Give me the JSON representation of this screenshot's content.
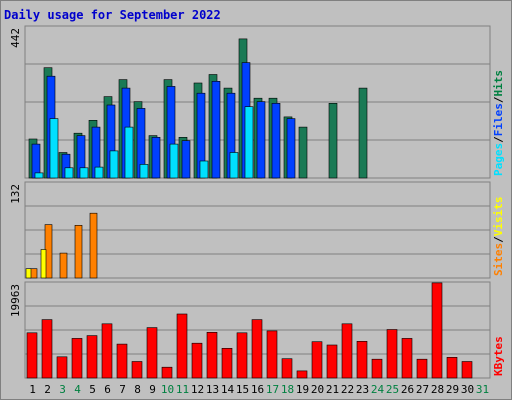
{
  "title": "Daily usage for September 2022",
  "colors": {
    "background": "#c0c0c0",
    "hits": "#1a7a55",
    "files": "#0040ff",
    "pages": "#00e0ff",
    "visits": "#ffff00",
    "sites": "#ff8000",
    "kbytes": "#ff0000",
    "title": "#0000cc",
    "weekend": "#008040",
    "grid": "#808080"
  },
  "chart_data": [
    {
      "type": "bar",
      "title": "Daily usage for September 2022",
      "categories": [
        "1",
        "2",
        "3",
        "4",
        "5",
        "6",
        "7",
        "8",
        "9",
        "10",
        "11",
        "12",
        "13",
        "14",
        "15",
        "16",
        "17",
        "18",
        "19",
        "20",
        "21",
        "22",
        "23",
        "24",
        "25",
        "26",
        "27",
        "28",
        "29",
        "30",
        "31"
      ],
      "weekend_days": [
        "3",
        "4",
        "10",
        "11",
        "17",
        "18",
        "24",
        "25",
        "31"
      ],
      "ylim": [
        0,
        442
      ],
      "ytick_label": "442",
      "grid": true,
      "right_labels": [
        "Pages",
        "/",
        "Files",
        "/",
        "Hits"
      ],
      "series": [
        {
          "name": "Hits",
          "values": [
            115,
            325,
            75,
            132,
            170,
            240,
            290,
            225,
            125,
            290,
            120,
            280,
            305,
            265,
            410,
            235,
            235,
            180,
            150,
            0,
            220,
            0,
            265,
            0,
            0,
            0,
            0,
            0,
            0,
            0,
            0
          ]
        },
        {
          "name": "Files",
          "values": [
            100,
            300,
            70,
            125,
            150,
            215,
            265,
            205,
            120,
            270,
            110,
            250,
            285,
            250,
            340,
            225,
            220,
            175,
            0,
            0,
            0,
            0,
            0,
            0,
            0,
            0,
            0,
            0,
            0,
            0,
            0
          ]
        },
        {
          "name": "Pages",
          "values": [
            15,
            175,
            30,
            30,
            32,
            80,
            150,
            40,
            0,
            100,
            0,
            50,
            0,
            75,
            210,
            0,
            0,
            0,
            0,
            0,
            0,
            0,
            0,
            0,
            0,
            0,
            0,
            0,
            0,
            0,
            0
          ]
        }
      ]
    },
    {
      "type": "bar",
      "categories": [
        "1",
        "2",
        "3",
        "4",
        "5",
        "6",
        "7",
        "8",
        "9",
        "10",
        "11",
        "12",
        "13",
        "14",
        "15",
        "16",
        "17",
        "18",
        "19",
        "20",
        "21",
        "22",
        "23",
        "24",
        "25",
        "26",
        "27",
        "28",
        "29",
        "30",
        "31"
      ],
      "ylim": [
        0,
        132
      ],
      "ytick_label": "132",
      "grid": true,
      "right_labels": [
        "Sites",
        "/",
        "Visits"
      ],
      "series": [
        {
          "name": "Sites",
          "values": [
            13,
            75,
            35,
            74,
            91,
            0,
            0,
            0,
            0,
            0,
            0,
            0,
            0,
            0,
            0,
            0,
            0,
            0,
            0,
            0,
            0,
            0,
            0,
            0,
            0,
            0,
            0,
            0,
            0,
            0,
            0
          ]
        },
        {
          "name": "Visits",
          "values": [
            13,
            40,
            0,
            0,
            0,
            0,
            0,
            0,
            0,
            0,
            0,
            0,
            0,
            0,
            0,
            0,
            0,
            0,
            0,
            0,
            0,
            0,
            0,
            0,
            0,
            0,
            0,
            0,
            0,
            0,
            0
          ]
        }
      ]
    },
    {
      "type": "bar",
      "categories": [
        "1",
        "2",
        "3",
        "4",
        "5",
        "6",
        "7",
        "8",
        "9",
        "10",
        "11",
        "12",
        "13",
        "14",
        "15",
        "16",
        "17",
        "18",
        "19",
        "20",
        "21",
        "22",
        "23",
        "24",
        "25",
        "26",
        "27",
        "28",
        "29",
        "30",
        "31"
      ],
      "ylim": [
        0,
        19963
      ],
      "ytick_label": "19963",
      "grid": true,
      "right_labels": [
        "KBytes"
      ],
      "series": [
        {
          "name": "KBytes",
          "values": [
            9600,
            12400,
            4500,
            8400,
            9000,
            11500,
            7200,
            3500,
            10700,
            2300,
            13600,
            7400,
            9700,
            6300,
            9600,
            12400,
            10000,
            4100,
            1500,
            7700,
            7000,
            11500,
            7800,
            4000,
            10300,
            8400,
            4000,
            20200,
            4400,
            3500,
            0
          ]
        }
      ]
    }
  ]
}
